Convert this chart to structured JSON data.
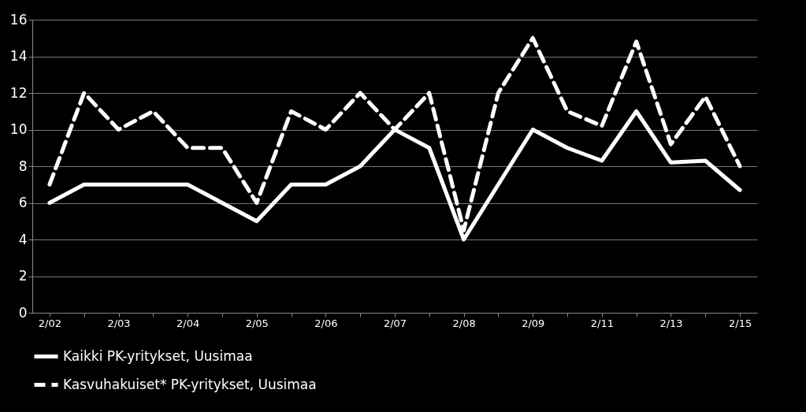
{
  "chart_data": {
    "type": "line",
    "categories": [
      "2/02",
      null,
      "2/03",
      null,
      "2/04",
      null,
      "2/05",
      null,
      "2/06",
      null,
      "2/07",
      null,
      "2/08",
      null,
      "2/09",
      null,
      "2/11",
      null,
      "2/13",
      null,
      "2/15"
    ],
    "series": [
      {
        "name": "Kaikki PK-yritykset, Uusimaa",
        "color": "#ffffff",
        "line_style": "solid",
        "values": [
          6,
          7,
          7,
          7,
          7,
          6,
          5,
          7,
          7,
          8,
          10,
          9,
          4,
          7,
          10,
          9,
          8.3,
          11,
          8.2,
          8.3,
          6.7
        ]
      },
      {
        "name": "Kasvuhakuiset* PK-yritykset, Uusimaa",
        "color": "#ffffff",
        "line_style": "dashed",
        "values": [
          7,
          12,
          10,
          11,
          9,
          9,
          6,
          11,
          10,
          12,
          10,
          12,
          4.5,
          12,
          15,
          11,
          10.2,
          14.8,
          9.2,
          11.8,
          8
        ]
      }
    ],
    "ylim": [
      0,
      16
    ],
    "yticks": [
      0,
      2,
      4,
      6,
      8,
      10,
      12,
      14,
      16
    ],
    "grid": "y",
    "legend": "bottom",
    "marker": "none"
  }
}
